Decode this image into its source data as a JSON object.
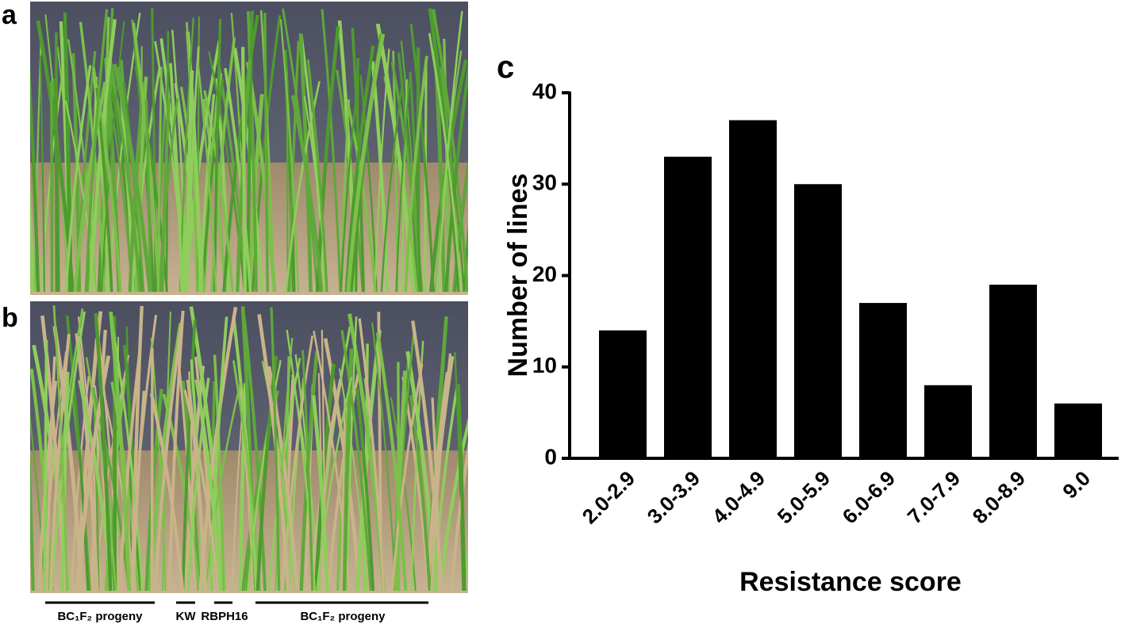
{
  "panel_labels": [
    "a",
    "b",
    "c"
  ],
  "photo_b_labels": [
    "BC₁F₂ progeny",
    "KW",
    "RBPH16",
    "BC₁F₂ progeny"
  ],
  "chart_data": {
    "type": "bar",
    "x_label": "Resistance score",
    "y_label": "Number of lines",
    "categories": [
      "2.0-2.9",
      "3.0-3.9",
      "4.0-4.9",
      "5.0-5.9",
      "6.0-6.9",
      "7.0-7.9",
      "8.0-8.9",
      "9.0"
    ],
    "values": [
      14,
      33,
      37,
      30,
      17,
      8,
      19,
      6
    ],
    "color": "#000000",
    "ylim": [
      0,
      40
    ],
    "yticks": [
      0,
      10,
      20,
      30,
      40
    ],
    "grid": false
  }
}
